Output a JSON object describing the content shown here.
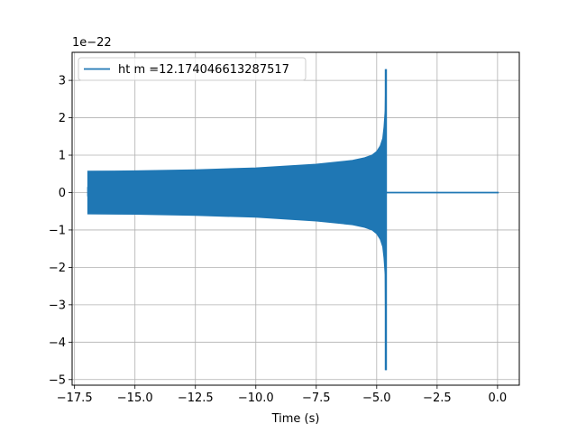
{
  "chart_data": {
    "type": "line",
    "title": "",
    "xlabel": "Time (s)",
    "ylabel": "",
    "y_scale_label": "1e−22",
    "xlim": [
      -17.6,
      0.9
    ],
    "ylim": [
      -5.15,
      3.75
    ],
    "x_ticks": [
      -17.5,
      -15.0,
      -12.5,
      -10.0,
      -7.5,
      -5.0,
      -2.5,
      0.0
    ],
    "x_tick_labels": [
      "−17.5",
      "−15.0",
      "−12.5",
      "−10.0",
      "−7.5",
      "−5.0",
      "−2.5",
      "0.0"
    ],
    "y_ticks": [
      -5,
      -4,
      -3,
      -2,
      -1,
      0,
      1,
      2,
      3
    ],
    "y_tick_labels": [
      "−5",
      "−4",
      "−3",
      "−2",
      "−1",
      "0",
      "1",
      "2",
      "3"
    ],
    "grid": true,
    "legend_position": "top-left",
    "series": [
      {
        "name": "ht m =12.174046613287517",
        "color": "#1f77b4",
        "envelope": {
          "x": [
            -16.95,
            -15.0,
            -12.5,
            -10.0,
            -7.5,
            -6.0,
            -5.5,
            -5.2,
            -5.0,
            -4.85,
            -4.75,
            -4.7,
            -4.65,
            -4.62
          ],
          "upper": [
            0.57,
            0.58,
            0.61,
            0.66,
            0.76,
            0.86,
            0.93,
            1.0,
            1.1,
            1.25,
            1.45,
            1.75,
            2.2,
            3.3
          ],
          "lower": [
            -0.57,
            -0.58,
            -0.61,
            -0.66,
            -0.76,
            -0.86,
            -0.93,
            -1.0,
            -1.1,
            -1.25,
            -1.45,
            -1.75,
            -2.2,
            -4.75
          ]
        },
        "start_x": -16.95,
        "merger_x": -4.62,
        "flat_end_x": 0.05,
        "flat_value": 0.0
      }
    ]
  }
}
